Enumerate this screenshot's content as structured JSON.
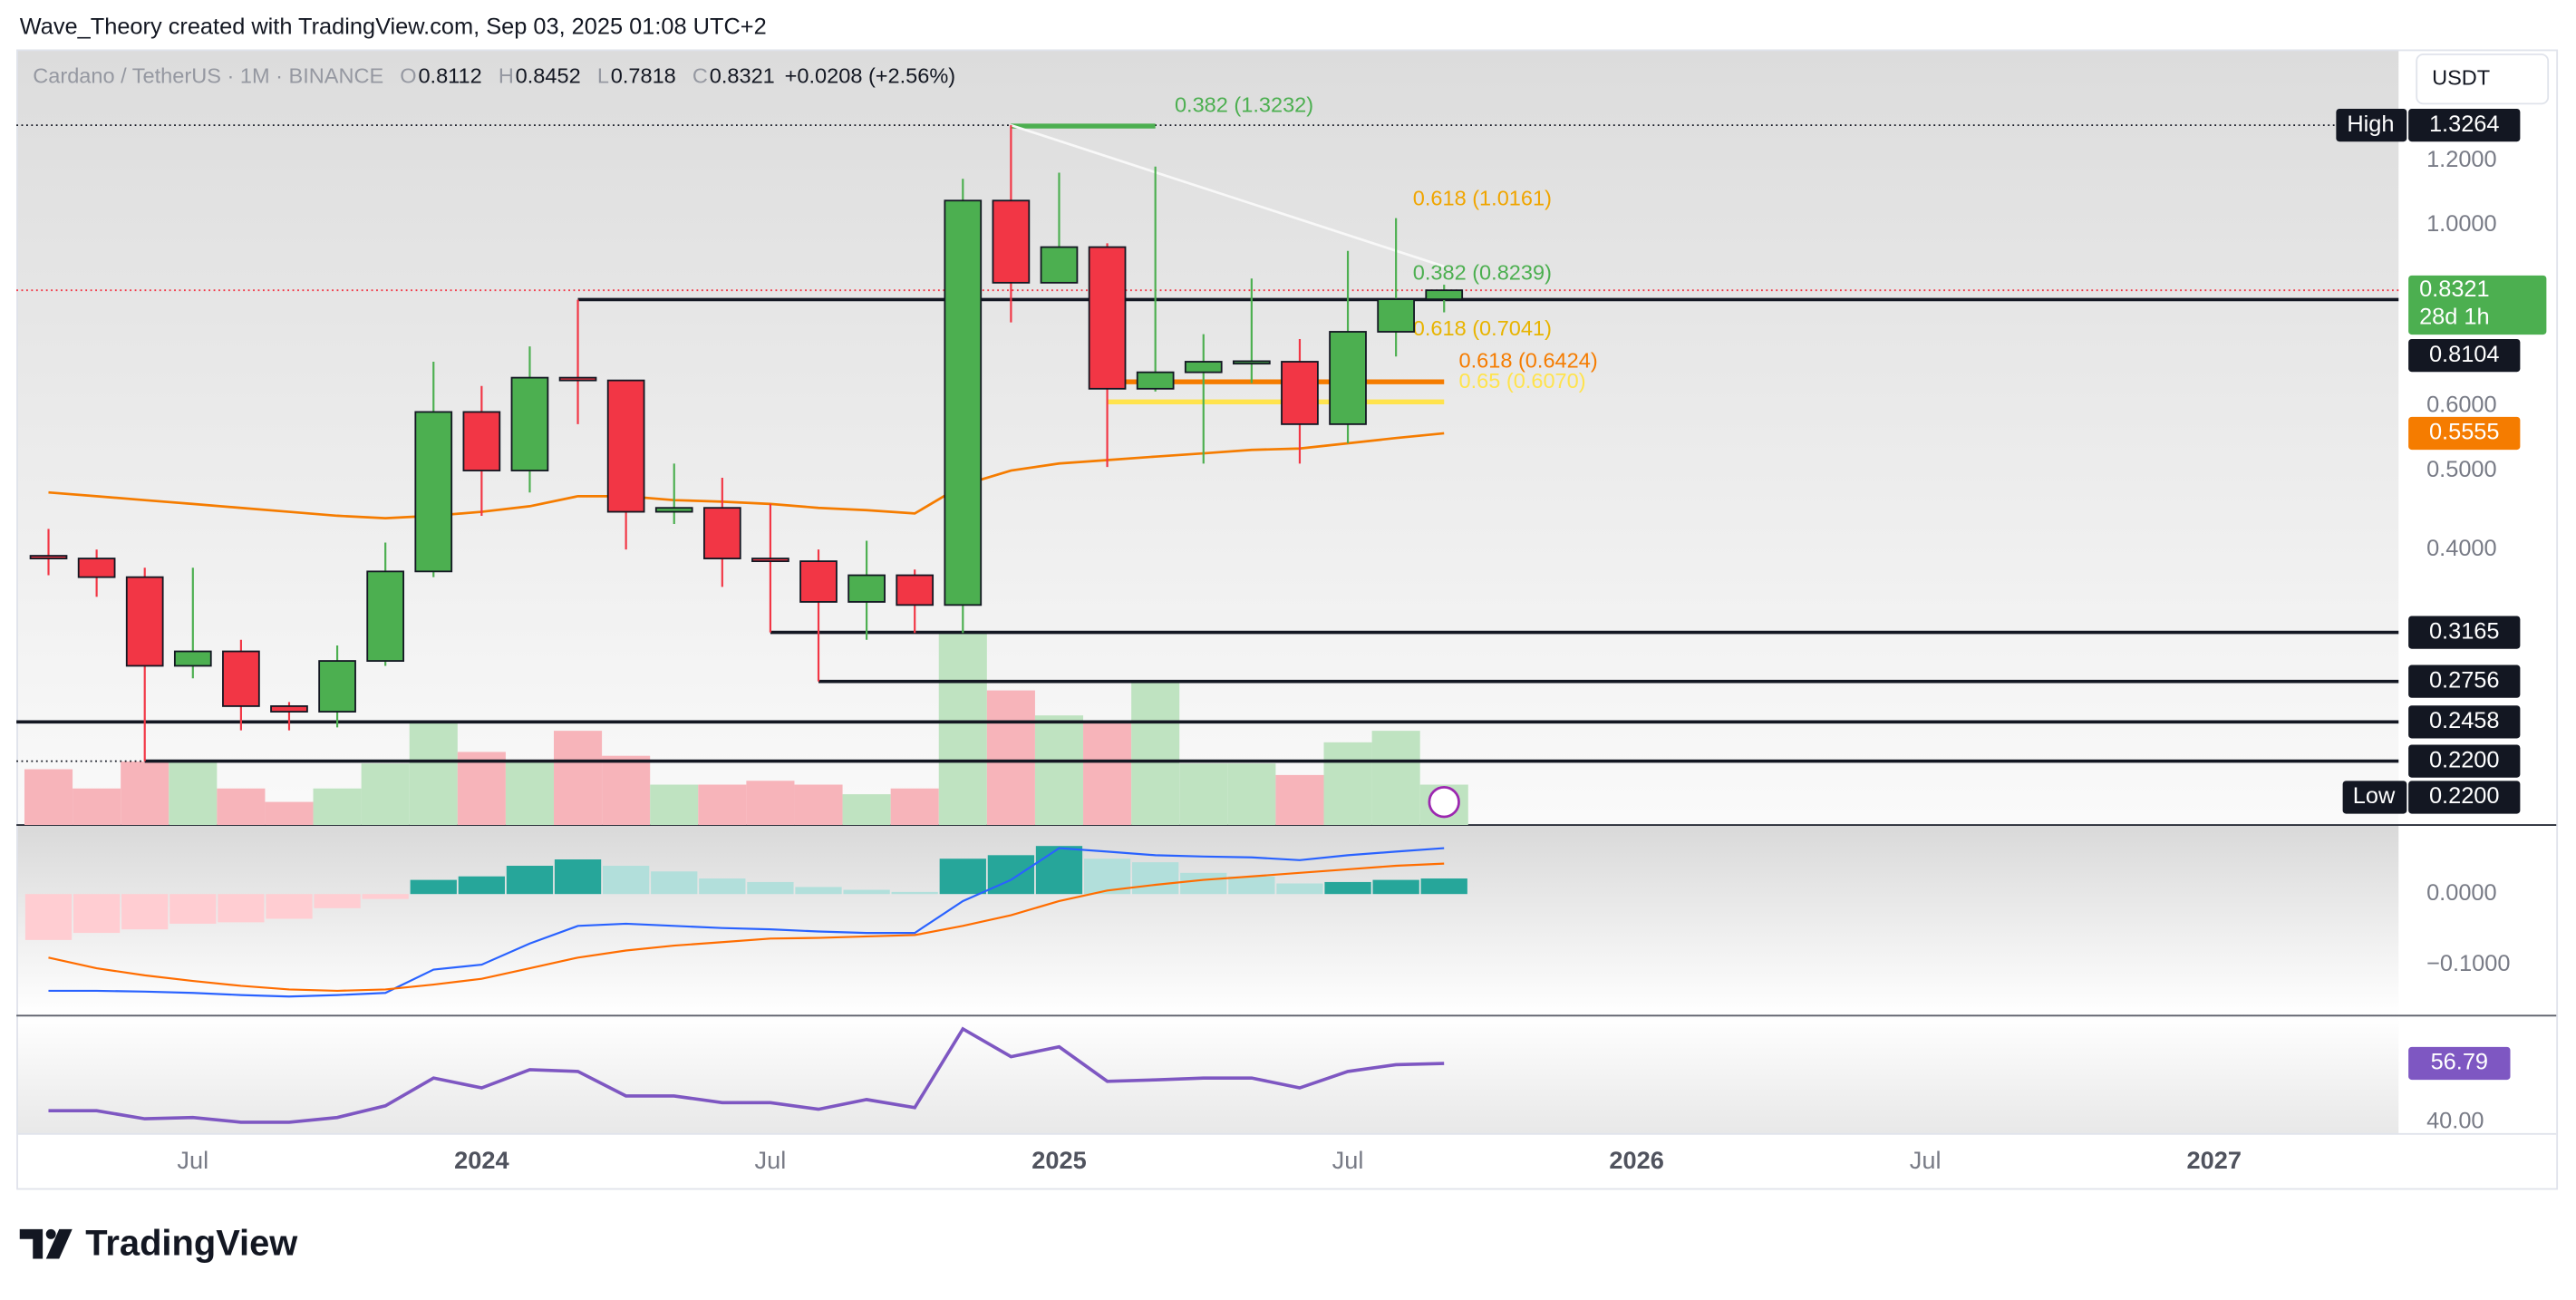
{
  "header": {
    "credit": "Wave_Theory created with TradingView.com, Sep 03, 2025 01:08 UTC+2",
    "currency": "USDT",
    "brand": "TradingView"
  },
  "chart_data": [
    {
      "type": "candlestick",
      "legend": {
        "symbol": "Cardano / TetherUS · 1M · BINANCE",
        "fields": [
          {
            "label": "O",
            "value": 0.8112
          },
          {
            "label": "H",
            "value": 0.8452
          },
          {
            "label": "L",
            "value": 0.7818
          },
          {
            "label": "C",
            "value": 0.8321
          }
        ],
        "change": "+0.0208 (+2.56%)"
      },
      "x": [
        "2023-04",
        "2023-05",
        "2023-06",
        "2023-07",
        "2023-08",
        "2023-09",
        "2023-10",
        "2023-11",
        "2023-12",
        "2024-01",
        "2024-02",
        "2024-03",
        "2024-04",
        "2024-05",
        "2024-06",
        "2024-07",
        "2024-08",
        "2024-09",
        "2024-10",
        "2024-11",
        "2024-12",
        "2025-01",
        "2025-02",
        "2025-03",
        "2025-04",
        "2025-05",
        "2025-06",
        "2025-07",
        "2025-08",
        "2025-09"
      ],
      "open": [
        0.393,
        0.39,
        0.37,
        0.288,
        0.3,
        0.257,
        0.253,
        0.292,
        0.376,
        0.59,
        0.5,
        0.65,
        0.645,
        0.445,
        0.45,
        0.39,
        0.387,
        0.345,
        0.372,
        0.342,
        1.072,
        0.85,
        0.94,
        0.63,
        0.66,
        0.68,
        0.68,
        0.57,
        0.74,
        0.8112
      ],
      "high": [
        0.424,
        0.4,
        0.38,
        0.38,
        0.31,
        0.26,
        0.305,
        0.408,
        0.68,
        0.635,
        0.71,
        0.81,
        0.645,
        0.51,
        0.49,
        0.455,
        0.4,
        0.41,
        0.378,
        1.14,
        1.3264,
        1.16,
        0.95,
        1.18,
        0.735,
        0.86,
        0.725,
        0.93,
        1.02,
        0.8452
      ],
      "low": [
        0.372,
        0.35,
        0.22,
        0.278,
        0.24,
        0.24,
        0.242,
        0.288,
        0.37,
        0.44,
        0.47,
        0.57,
        0.4,
        0.43,
        0.36,
        0.3165,
        0.2756,
        0.31,
        0.316,
        0.316,
        0.76,
        0.85,
        0.505,
        0.625,
        0.51,
        0.64,
        0.51,
        0.54,
        0.69,
        0.7818
      ],
      "close": [
        0.39,
        0.37,
        0.288,
        0.3,
        0.257,
        0.253,
        0.292,
        0.376,
        0.59,
        0.5,
        0.65,
        0.645,
        0.445,
        0.45,
        0.39,
        0.387,
        0.345,
        0.372,
        0.342,
        1.072,
        0.85,
        0.94,
        0.63,
        0.66,
        0.68,
        0.681,
        0.57,
        0.74,
        0.8112,
        0.8321
      ],
      "up_color": "#4caf50",
      "down_color": "#f23645",
      "ema_values": [
        0.47,
        0.465,
        0.46,
        0.455,
        0.45,
        0.445,
        0.44,
        0.437,
        0.44,
        0.445,
        0.452,
        0.465,
        0.465,
        0.46,
        0.458,
        0.455,
        0.45,
        0.447,
        0.443,
        0.48,
        0.5,
        0.51,
        0.515,
        0.52,
        0.525,
        0.53,
        0.532,
        0.54,
        0.548,
        0.5555
      ],
      "ema_color": "#f57c00",
      "volume": [
        29,
        19,
        33,
        33,
        19,
        12,
        19,
        32,
        53,
        38,
        33,
        49,
        36,
        21,
        21,
        23,
        21,
        16,
        19,
        100,
        70,
        57,
        53,
        74,
        32,
        32,
        26,
        43,
        49,
        21
      ],
      "volume_up_color": "#bfe3c1",
      "volume_down_color": "#f7b4ba",
      "log_scale": true,
      "ylim": [
        0.1837,
        1.643
      ],
      "yticks": [
        {
          "value": 1.2,
          "label": "1.2000"
        },
        {
          "value": 1.0,
          "label": "1.0000"
        },
        {
          "value": 0.6,
          "label": "0.6000"
        },
        {
          "value": 0.5,
          "label": "0.5000"
        },
        {
          "value": 0.4,
          "label": "0.4000"
        }
      ],
      "xlim": [
        "2023-03-11",
        "2027-04-26"
      ],
      "xticks": [
        {
          "value": "2023-07",
          "label": "Jul"
        },
        {
          "value": "2024-01",
          "label": "2024"
        },
        {
          "value": "2024-07",
          "label": "Jul"
        },
        {
          "value": "2025-01",
          "label": "2025"
        },
        {
          "value": "2025-07",
          "label": "Jul"
        },
        {
          "value": "2026-01",
          "label": "2026"
        },
        {
          "value": "2026-07",
          "label": "Jul"
        },
        {
          "value": "2027-01",
          "label": "2027"
        }
      ],
      "levels": [
        {
          "value": 0.8104,
          "label": "0.8104",
          "from": "2024-03"
        },
        {
          "value": 0.3165,
          "label": "0.3165",
          "from": "2024-07"
        },
        {
          "value": 0.2756,
          "label": "0.2756",
          "from": "2024-08"
        },
        {
          "value": 0.2458,
          "label": "0.2458",
          "from": "2023-03-11"
        },
        {
          "value": 0.22,
          "label": "0.2200",
          "from": "2023-06"
        }
      ],
      "high_marker": {
        "label": "High",
        "value": 1.3264
      },
      "low_marker": {
        "label": "Low",
        "value": 0.22,
        "price_label": "0.2200"
      },
      "last_price": {
        "value": 0.8321,
        "countdown": "28d 1h"
      },
      "fibs": [
        {
          "label": "0.382 (1.3232)",
          "value": 1.3232,
          "color": "#4caf50",
          "from": "2024-12",
          "to": "2025-03"
        },
        {
          "label": "0.618 (1.0161)",
          "value": 1.0161,
          "color": "#f0a500"
        },
        {
          "label": "0.382 (0.8239)",
          "value": 0.8239,
          "color": "#4caf50"
        },
        {
          "label": "0.618 (0.7041)",
          "value": 0.7041,
          "color": "#e8b400"
        },
        {
          "label": "0.618 (0.6424)",
          "value": 0.6424,
          "color": "#f57c00",
          "from": "2025-02",
          "to": "2025-09"
        },
        {
          "label": "0.65 (0.6070)",
          "value": 0.607,
          "color": "#ffe34d",
          "from": "2025-02",
          "to": "2025-09"
        }
      ],
      "trendline": {
        "from": "2024-12",
        "from_value": 1.3264,
        "to": "2025-09",
        "to_value": 0.89
      }
    },
    {
      "type": "macd",
      "histogram": [
        -0.065,
        -0.055,
        -0.05,
        -0.042,
        -0.04,
        -0.035,
        -0.02,
        -0.007,
        0.02,
        0.025,
        0.04,
        0.049,
        0.04,
        0.032,
        0.022,
        0.017,
        0.01,
        0.006,
        0.003,
        0.05,
        0.055,
        0.068,
        0.05,
        0.045,
        0.03,
        0.025,
        0.015,
        0.017,
        0.02,
        0.022
      ],
      "histogram_colors": [
        "#ffcdd2",
        "#ffcdd2",
        "#ffcdd2",
        "#ffcdd2",
        "#ffcdd2",
        "#ffcdd2",
        "#ffcdd2",
        "#ffcdd2",
        "#26a69a",
        "#26a69a",
        "#26a69a",
        "#26a69a",
        "#b2dfdb",
        "#b2dfdb",
        "#b2dfdb",
        "#b2dfdb",
        "#b2dfdb",
        "#b2dfdb",
        "#b2dfdb",
        "#26a69a",
        "#26a69a",
        "#26a69a",
        "#b2dfdb",
        "#b2dfdb",
        "#b2dfdb",
        "#b2dfdb",
        "#b2dfdb",
        "#26a69a",
        "#26a69a",
        "#26a69a"
      ],
      "macd_values": [
        -0.137,
        -0.137,
        -0.138,
        -0.14,
        -0.143,
        -0.145,
        -0.143,
        -0.14,
        -0.107,
        -0.1,
        -0.07,
        -0.045,
        -0.042,
        -0.045,
        -0.048,
        -0.05,
        -0.053,
        -0.055,
        -0.055,
        -0.01,
        0.02,
        0.065,
        0.06,
        0.055,
        0.053,
        0.052,
        0.048,
        0.055,
        0.06,
        0.065
      ],
      "macd_color": "#2962ff",
      "signal_values": [
        -0.09,
        -0.105,
        -0.115,
        -0.123,
        -0.13,
        -0.135,
        -0.137,
        -0.135,
        -0.128,
        -0.12,
        -0.105,
        -0.09,
        -0.08,
        -0.073,
        -0.068,
        -0.063,
        -0.062,
        -0.06,
        -0.058,
        -0.045,
        -0.03,
        -0.01,
        0.005,
        0.013,
        0.02,
        0.025,
        0.03,
        0.035,
        0.04,
        0.043
      ],
      "signal_color": "#ff6d00",
      "ylim": [
        -0.172,
        0.0977
      ],
      "yticks": [
        {
          "value": 0,
          "label": "0.0000"
        },
        {
          "value": -0.1,
          "label": "−0.1000"
        }
      ]
    },
    {
      "type": "line",
      "values": [
        43.3,
        43.3,
        41,
        41.4,
        40,
        40,
        41.4,
        44.7,
        52.6,
        49.8,
        55,
        54.5,
        47.5,
        47.5,
        45.6,
        45.6,
        43.7,
        46.5,
        44.2,
        66.6,
        58.7,
        61.5,
        51.7,
        52.1,
        52.6,
        52.6,
        49.8,
        54.5,
        56.4,
        56.79
      ],
      "color": "#7e57c2",
      "ylim": [
        36.7,
        70.4
      ],
      "yticks": [
        {
          "value": 40,
          "label": "40.00"
        }
      ]
    }
  ]
}
